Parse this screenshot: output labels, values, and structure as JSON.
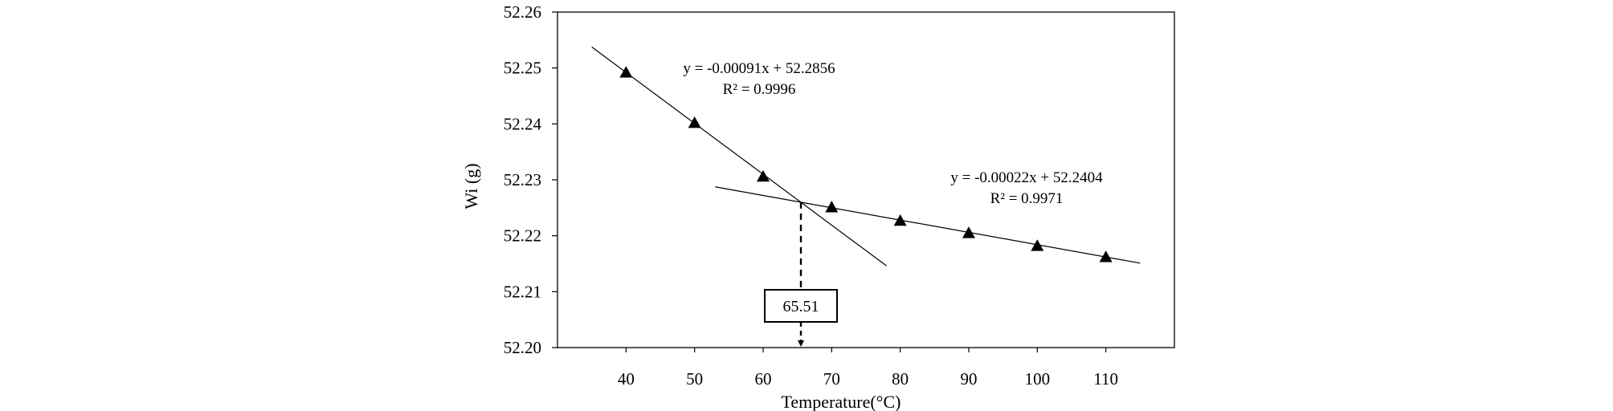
{
  "chart_data": {
    "type": "scatter",
    "xlabel": "Temperature(°C)",
    "ylabel": "Wi (g)",
    "xlim": [
      30,
      120
    ],
    "ylim": [
      52.2,
      52.26
    ],
    "x_ticks": [
      40,
      50,
      60,
      70,
      80,
      90,
      100,
      110
    ],
    "x_tick_labels": [
      "40",
      "50",
      "60",
      "70",
      "80",
      "90",
      "100",
      "110"
    ],
    "y_ticks": [
      52.2,
      52.21,
      52.22,
      52.23,
      52.24,
      52.25,
      52.26
    ],
    "y_tick_labels": [
      "52.20",
      "52.21",
      "52.22",
      "52.23",
      "52.24",
      "52.25",
      "52.26"
    ],
    "grid": false,
    "marker": "filled-triangle",
    "series": [
      {
        "x": [
          40,
          50,
          60,
          70,
          80,
          90,
          100,
          110
        ],
        "y": [
          52.2492,
          52.2402,
          52.2306,
          52.2251,
          52.2227,
          52.2205,
          52.2182,
          52.2162
        ]
      }
    ],
    "trendlines": [
      {
        "slope": -0.00091,
        "intercept": 52.2856,
        "x_range": [
          35,
          78
        ],
        "equation": "y = -0.00091x + 52.2856",
        "r2": "R² = 0.9996"
      },
      {
        "slope": -0.00022,
        "intercept": 52.2404,
        "x_range": [
          53,
          115
        ],
        "equation": "y = -0.00022x + 52.2404",
        "r2": "R² = 0.9971"
      }
    ],
    "intersection": {
      "x": 65.51,
      "y": 52.226,
      "label": "65.51"
    }
  }
}
